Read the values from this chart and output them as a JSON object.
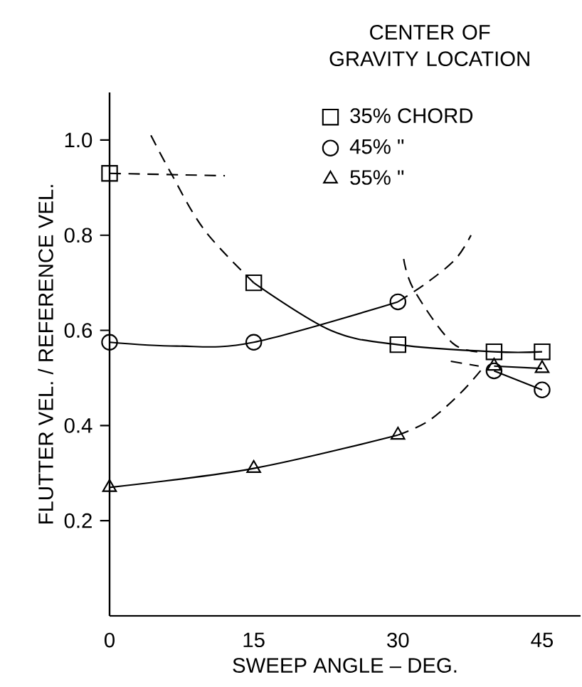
{
  "chart_data": {
    "type": "line",
    "title": "CENTER OF GRAVITY LOCATION",
    "xlabel": "SWEEP ANGLE – DEG.",
    "ylabel": "FLUTTER VEL. / REFERENCE VEL.",
    "xlim": [
      0,
      49
    ],
    "ylim": [
      0,
      1.1
    ],
    "xticks": [
      0,
      15,
      30,
      45
    ],
    "yticks": [
      0.2,
      0.4,
      0.6,
      0.8,
      {
        "value": 1.0,
        "label": "1.0"
      }
    ],
    "grid": false,
    "legend": "top right",
    "series": [
      {
        "line_style": "solid",
        "marker": "none",
        "color": "#000000",
        "x": [
          15,
          23,
          30,
          40,
          45
        ],
        "values": [
          0.7,
          0.6,
          0.57,
          0.555,
          0.555
        ]
      },
      {
        "line_style": "solid",
        "marker": "none",
        "color": "#000000",
        "x": [
          0,
          7,
          15,
          30
        ],
        "values": [
          0.575,
          0.567,
          0.575,
          0.66
        ]
      },
      {
        "line_style": "solid",
        "marker": "none",
        "color": "#000000",
        "x": [
          40,
          45
        ],
        "values": [
          0.515,
          0.475
        ]
      },
      {
        "line_style": "solid",
        "marker": "none",
        "color": "#000000",
        "x": [
          0,
          15,
          30
        ],
        "values": [
          0.27,
          0.31,
          0.38
        ]
      },
      {
        "line_style": "solid",
        "marker": "none",
        "color": "#000000",
        "x": [
          40,
          45
        ],
        "values": [
          0.525,
          0.52
        ]
      },
      {
        "line_style": "dashed",
        "marker": "none",
        "color": "#000000",
        "x": [
          0,
          12
        ],
        "values": [
          0.93,
          0.925
        ]
      },
      {
        "line_style": "dashed",
        "marker": "none",
        "color": "#000000",
        "x": [
          4.3,
          6.4,
          9.9,
          15
        ],
        "values": [
          1.01,
          0.93,
          0.81,
          0.7
        ]
      },
      {
        "line_style": "dashed",
        "marker": "none",
        "color": "#000000",
        "x": [
          30,
          33,
          36,
          37.6
        ],
        "values": [
          0.66,
          0.7,
          0.75,
          0.8
        ]
      },
      {
        "line_style": "dashed",
        "marker": "none",
        "color": "#000000",
        "x": [
          30.6,
          31.7,
          35.7,
          39
        ],
        "values": [
          0.75,
          0.684,
          0.573,
          0.555
        ]
      },
      {
        "line_style": "dashed",
        "marker": "none",
        "color": "#000000",
        "x": [
          30,
          33.2,
          36.6,
          39
        ],
        "values": [
          0.38,
          0.41,
          0.47,
          0.525
        ]
      },
      {
        "line_style": "dashed",
        "marker": "none",
        "color": "#000000",
        "x": [
          35.5,
          38.4
        ],
        "values": [
          0.535,
          0.525
        ]
      },
      {
        "name": "35% CHORD",
        "type": "scatter",
        "marker": "square",
        "color": "#000000",
        "x": [
          0,
          15,
          30,
          40,
          45
        ],
        "values": [
          0.93,
          0.7,
          0.57,
          0.555,
          0.555
        ]
      },
      {
        "name": "45%      \"",
        "type": "scatter",
        "marker": "circle",
        "color": "#000000",
        "x": [
          0,
          15,
          30,
          40,
          45
        ],
        "values": [
          0.575,
          0.575,
          0.66,
          0.515,
          0.475
        ]
      },
      {
        "name": "55%      \"",
        "type": "scatter",
        "marker": "triangle",
        "color": "#000000",
        "x": [
          0,
          15,
          30,
          40,
          45
        ],
        "values": [
          0.27,
          0.31,
          0.38,
          0.525,
          0.52
        ]
      }
    ]
  }
}
